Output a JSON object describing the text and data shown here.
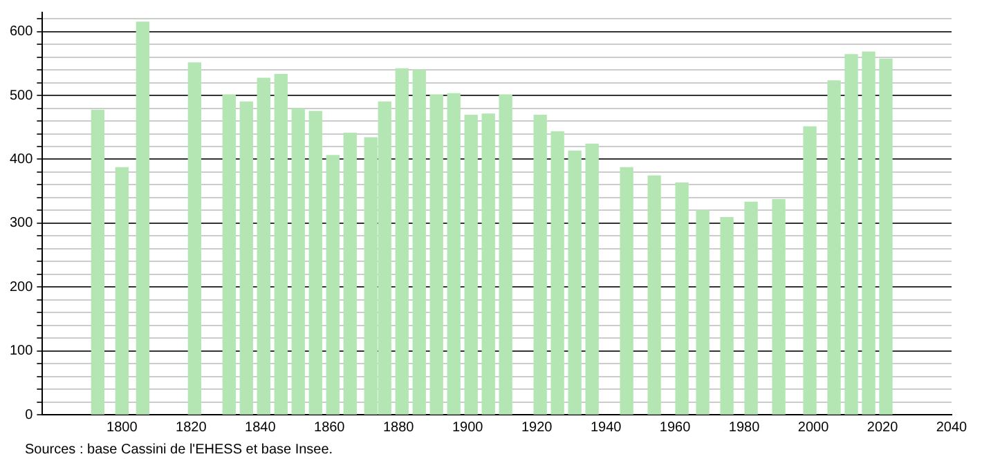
{
  "chart_data": {
    "type": "bar",
    "color": "#b3e6b3",
    "x": [
      1793,
      1800,
      1806,
      1821,
      1831,
      1836,
      1841,
      1846,
      1851,
      1856,
      1861,
      1866,
      1872,
      1876,
      1881,
      1886,
      1891,
      1896,
      1901,
      1906,
      1911,
      1921,
      1926,
      1931,
      1936,
      1946,
      1954,
      1962,
      1968,
      1975,
      1982,
      1990,
      1999,
      2006,
      2011,
      2016,
      2021
    ],
    "values": [
      477,
      387,
      615,
      551,
      501,
      490,
      527,
      533,
      479,
      475,
      406,
      441,
      434,
      490,
      542,
      540,
      501,
      503,
      469,
      471,
      501,
      469,
      443,
      413,
      424,
      387,
      374,
      363,
      320,
      309,
      333,
      337,
      451,
      523,
      564,
      568,
      557
    ],
    "xlim": [
      1777,
      2040
    ],
    "xticks": [
      1800,
      1820,
      1840,
      1860,
      1880,
      1900,
      1920,
      1940,
      1960,
      1980,
      2000,
      2020,
      2040
    ],
    "ylim": [
      0,
      630
    ],
    "yticks": [
      0,
      {
        "value": 20,
        "label": null
      },
      {
        "value": 40,
        "label": null
      },
      {
        "value": 60,
        "label": null
      },
      {
        "value": 80,
        "label": null
      },
      100,
      {
        "value": 120,
        "label": null
      },
      {
        "value": 140,
        "label": null
      },
      {
        "value": 160,
        "label": null
      },
      {
        "value": 180,
        "label": null
      },
      200,
      {
        "value": 220,
        "label": null
      },
      {
        "value": 240,
        "label": null
      },
      {
        "value": 260,
        "label": null
      },
      {
        "value": 280,
        "label": null
      },
      300,
      {
        "value": 320,
        "label": null
      },
      {
        "value": 340,
        "label": null
      },
      {
        "value": 360,
        "label": null
      },
      {
        "value": 380,
        "label": null
      },
      400,
      {
        "value": 420,
        "label": null
      },
      {
        "value": 440,
        "label": null
      },
      {
        "value": 460,
        "label": null
      },
      {
        "value": 480,
        "label": null
      },
      500,
      {
        "value": 520,
        "label": null
      },
      {
        "value": 540,
        "label": null
      },
      {
        "value": 560,
        "label": null
      },
      {
        "value": 580,
        "label": null
      },
      600,
      {
        "value": 620,
        "label": null
      }
    ],
    "grid": "y",
    "annotations": [
      "Sources : base Cassini de l'EHESS et base Insee."
    ]
  }
}
